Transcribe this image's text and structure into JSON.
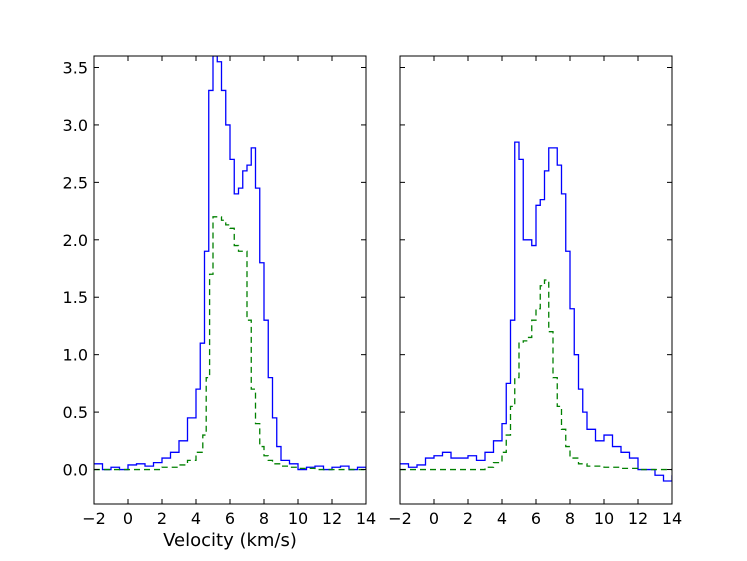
{
  "chart_data": [
    {
      "type": "line",
      "panel": "left",
      "xlabel": "Velocity (km/s)",
      "ylabel": "",
      "xlim": [
        -2,
        14
      ],
      "ylim": [
        -0.3,
        3.6
      ],
      "xticks": [
        "−2",
        "0",
        "2",
        "4",
        "6",
        "8",
        "10",
        "12",
        "14"
      ],
      "yticks": [
        "0.0",
        "0.5",
        "1.0",
        "1.5",
        "2.0",
        "2.5",
        "3.0",
        "3.5"
      ],
      "grid": false,
      "series": [
        {
          "style": "solid-step",
          "color": "#0000ff",
          "x": [
            -2.0,
            -1.5,
            -1.0,
            -0.5,
            0.0,
            0.5,
            1.0,
            1.5,
            2.0,
            2.5,
            3.0,
            3.5,
            4.0,
            4.25,
            4.5,
            4.75,
            5.0,
            5.25,
            5.5,
            5.75,
            6.0,
            6.25,
            6.5,
            6.75,
            7.0,
            7.25,
            7.5,
            7.75,
            8.0,
            8.25,
            8.5,
            8.75,
            9.0,
            9.5,
            10.0,
            10.5,
            11.0,
            11.5,
            12.0,
            12.5,
            13.0,
            13.5,
            14.0
          ],
          "y": [
            0.05,
            0.0,
            0.02,
            0.0,
            0.04,
            0.05,
            0.03,
            0.06,
            0.1,
            0.15,
            0.25,
            0.45,
            0.7,
            1.1,
            1.9,
            3.3,
            3.6,
            3.55,
            3.3,
            3.0,
            2.7,
            2.4,
            2.45,
            2.6,
            2.65,
            2.8,
            2.45,
            1.8,
            1.3,
            0.8,
            0.45,
            0.2,
            0.08,
            0.05,
            0.0,
            0.02,
            0.03,
            0.0,
            0.02,
            0.03,
            0.0,
            0.02,
            0.0
          ]
        },
        {
          "style": "dashed-step",
          "color": "#008000",
          "x": [
            -2.0,
            0.0,
            1.0,
            2.0,
            3.0,
            3.5,
            4.0,
            4.4,
            4.6,
            4.8,
            5.0,
            5.25,
            5.5,
            5.75,
            6.0,
            6.25,
            6.5,
            6.75,
            7.0,
            7.25,
            7.5,
            7.75,
            8.0,
            8.25,
            8.5,
            9.0,
            9.5,
            10.0,
            11.0,
            12.0,
            13.0,
            14.0
          ],
          "y": [
            0.0,
            0.0,
            0.0,
            0.02,
            0.04,
            0.08,
            0.15,
            0.3,
            0.8,
            1.7,
            2.2,
            2.2,
            2.17,
            2.13,
            2.1,
            1.95,
            1.9,
            1.9,
            1.3,
            0.7,
            0.4,
            0.2,
            0.12,
            0.08,
            0.05,
            0.03,
            0.02,
            0.01,
            0.0,
            0.0,
            0.0,
            0.0
          ]
        }
      ]
    },
    {
      "type": "line",
      "panel": "right",
      "xlabel": "",
      "ylabel": "",
      "xlim": [
        -2,
        14
      ],
      "ylim": [
        -0.3,
        3.6
      ],
      "xticks": [
        "−2",
        "0",
        "2",
        "4",
        "6",
        "8",
        "10",
        "12",
        "14"
      ],
      "yticks": [],
      "grid": false,
      "series": [
        {
          "style": "solid-step",
          "color": "#0000ff",
          "x": [
            -2.0,
            -1.5,
            -1.0,
            -0.5,
            0.0,
            0.5,
            1.0,
            1.5,
            2.0,
            2.5,
            3.0,
            3.5,
            4.0,
            4.25,
            4.5,
            4.75,
            5.0,
            5.25,
            5.5,
            5.75,
            6.0,
            6.25,
            6.5,
            6.75,
            7.0,
            7.25,
            7.5,
            7.75,
            8.0,
            8.25,
            8.5,
            8.75,
            9.0,
            9.5,
            10.0,
            10.5,
            11.0,
            11.5,
            12.0,
            12.5,
            13.0,
            13.5,
            14.0
          ],
          "y": [
            0.05,
            0.02,
            0.04,
            0.1,
            0.12,
            0.15,
            0.1,
            0.1,
            0.12,
            0.08,
            0.15,
            0.25,
            0.4,
            0.75,
            1.3,
            2.85,
            2.7,
            2.0,
            2.0,
            1.95,
            2.3,
            2.35,
            2.6,
            2.8,
            2.8,
            2.65,
            2.4,
            1.9,
            1.4,
            1.0,
            0.7,
            0.5,
            0.35,
            0.25,
            0.3,
            0.2,
            0.15,
            0.1,
            0.0,
            0.0,
            -0.05,
            -0.1,
            -0.05
          ]
        },
        {
          "style": "dashed-step",
          "color": "#008000",
          "x": [
            -2.0,
            0.0,
            1.0,
            2.0,
            3.0,
            3.5,
            4.0,
            4.25,
            4.5,
            4.75,
            5.0,
            5.25,
            5.5,
            5.75,
            6.0,
            6.25,
            6.5,
            6.75,
            7.0,
            7.25,
            7.5,
            7.75,
            8.0,
            8.5,
            9.0,
            10.0,
            11.0,
            12.0,
            13.0,
            14.0
          ],
          "y": [
            0.0,
            0.0,
            0.0,
            0.0,
            0.02,
            0.06,
            0.15,
            0.3,
            0.55,
            0.8,
            1.1,
            1.12,
            1.15,
            1.3,
            1.4,
            1.6,
            1.65,
            1.2,
            0.8,
            0.55,
            0.35,
            0.2,
            0.1,
            0.05,
            0.03,
            0.02,
            0.01,
            0.0,
            0.0,
            0.0
          ]
        }
      ]
    }
  ]
}
